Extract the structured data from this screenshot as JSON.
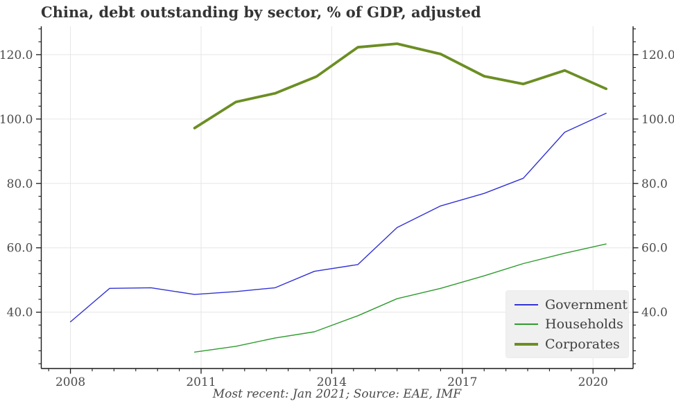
{
  "chart_data": {
    "type": "line",
    "title": "China, debt outstanding by sector, % of GDP, adjusted",
    "source_note": "Most recent: Jan 2021; Source: EAE, IMF",
    "xlabel": "",
    "ylabel": "",
    "xlim": [
      2007.33,
      2020.92
    ],
    "ylim": [
      22.5,
      128.8
    ],
    "x_major_ticks": [
      2008,
      2011,
      2014,
      2017,
      2020
    ],
    "x_tick_labels": [
      "2008",
      "2011",
      "2014",
      "2017",
      "2020"
    ],
    "x_minor_step": 0.5,
    "y_major_ticks": [
      40,
      60,
      80,
      100,
      120
    ],
    "y_tick_labels": [
      "40.0",
      "60.0",
      "80.0",
      "100.0",
      "120.0"
    ],
    "y_minor_step": 4,
    "grid": true,
    "y_axis_sides": [
      "left",
      "right"
    ],
    "legend_position": "lower right",
    "style": {
      "grid_color": "#e6e6e6",
      "spine_color": "#1a1a1a",
      "tick_color": "#1a1a1a",
      "tick_label_color": "#4b4b4b",
      "legend_bg": "#f0f0f0"
    },
    "series": [
      {
        "name": "Government",
        "color": "#3131d6",
        "width": 1.4,
        "points": [
          [
            2008.0,
            37.0
          ],
          [
            2008.9,
            47.4
          ],
          [
            2009.85,
            47.6
          ],
          [
            2010.85,
            45.5
          ],
          [
            2011.8,
            46.4
          ],
          [
            2012.7,
            47.6
          ],
          [
            2013.6,
            52.7
          ],
          [
            2014.6,
            54.8
          ],
          [
            2015.5,
            66.3
          ],
          [
            2016.5,
            73.0
          ],
          [
            2017.5,
            76.9
          ],
          [
            2018.4,
            81.6
          ],
          [
            2019.35,
            95.9
          ],
          [
            2020.3,
            101.8
          ]
        ]
      },
      {
        "name": "Households",
        "color": "#2e9b2e",
        "width": 1.4,
        "points": [
          [
            2010.85,
            27.6
          ],
          [
            2011.8,
            29.4
          ],
          [
            2012.7,
            32.0
          ],
          [
            2013.6,
            33.9
          ],
          [
            2014.6,
            38.9
          ],
          [
            2015.5,
            44.2
          ],
          [
            2016.5,
            47.4
          ],
          [
            2017.5,
            51.3
          ],
          [
            2018.4,
            55.1
          ],
          [
            2019.35,
            58.3
          ],
          [
            2020.3,
            61.2
          ]
        ]
      },
      {
        "name": "Corporates",
        "color": "#6b8e23",
        "width": 3.8,
        "points": [
          [
            2010.85,
            97.2
          ],
          [
            2011.8,
            105.3
          ],
          [
            2012.7,
            108.0
          ],
          [
            2013.65,
            113.2
          ],
          [
            2014.6,
            122.3
          ],
          [
            2015.5,
            123.4
          ],
          [
            2016.5,
            120.2
          ],
          [
            2017.5,
            113.3
          ],
          [
            2018.4,
            110.9
          ],
          [
            2019.35,
            115.1
          ],
          [
            2020.3,
            109.4
          ]
        ]
      }
    ]
  }
}
